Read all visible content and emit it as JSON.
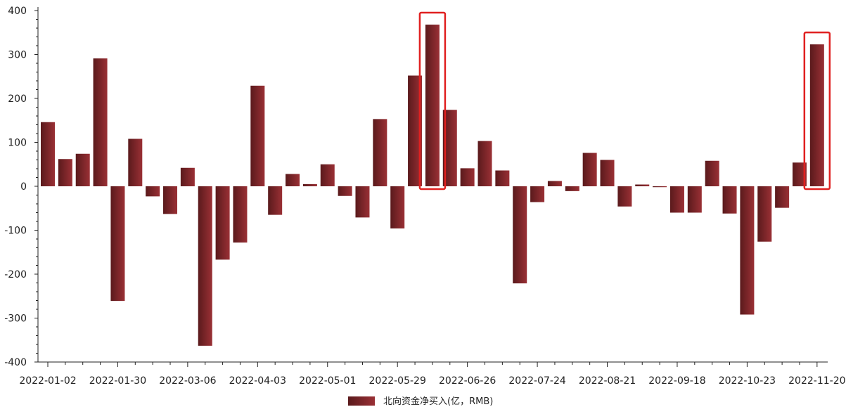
{
  "chart_data": {
    "type": "bar",
    "title": "",
    "xlabel": "",
    "ylabel": "",
    "ylim": [
      -400,
      400
    ],
    "y_ticks": [
      -400,
      -300,
      -200,
      -100,
      0,
      100,
      200,
      300,
      400
    ],
    "x_tick_labels": [
      "2022-01-02",
      "2022-01-30",
      "2022-03-06",
      "2022-04-03",
      "2022-05-01",
      "2022-05-29",
      "2022-06-26",
      "2022-07-24",
      "2022-08-21",
      "2022-09-18",
      "2022-10-23",
      "2022-11-20"
    ],
    "legend_position": "bottom-center",
    "grid": false,
    "bar_color_dark": "#5a1a1c",
    "bar_color_light": "#9a3035",
    "highlight_color": "#e02020",
    "series": [
      {
        "name": "北向资金净买入(亿，RMB)",
        "values": [
          146,
          62,
          74,
          291,
          -261,
          108,
          -23,
          -63,
          42,
          -363,
          -167,
          -128,
          229,
          -65,
          28,
          5,
          50,
          -22,
          -71,
          153,
          -96,
          252,
          368,
          174,
          41,
          103,
          36,
          -221,
          -36,
          12,
          -11,
          76,
          60,
          -46,
          4,
          -2,
          -60,
          -60,
          58,
          -62,
          -292,
          -126,
          -49,
          54,
          323
        ]
      }
    ],
    "highlighted_bar_indices": [
      22,
      44
    ]
  }
}
